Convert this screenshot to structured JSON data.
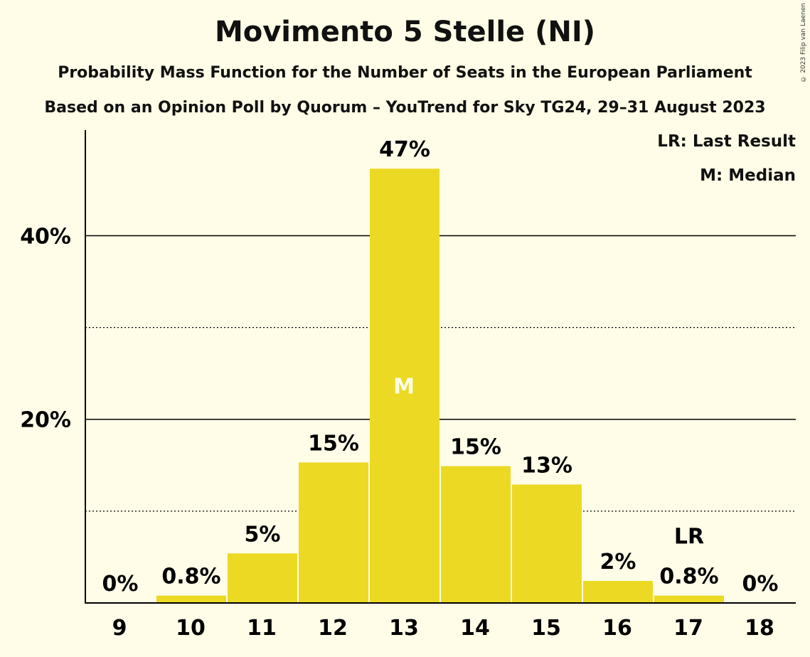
{
  "title": "Movimento 5 Stelle (NI)",
  "subtitle1": "Probability Mass Function for the Number of Seats in the European Parliament",
  "subtitle2": "Based on an Opinion Poll by Quorum – YouTrend for Sky TG24, 29–31 August 2023",
  "copyright": "© 2023 Filip van Laenen",
  "legend": {
    "last_result": "LR: Last Result",
    "median": "M: Median"
  },
  "colors": {
    "background": "#fffde7",
    "bar": "#ecd924",
    "median_text": "#fffde7"
  },
  "chart_data": {
    "type": "bar",
    "categories": [
      "9",
      "10",
      "11",
      "12",
      "13",
      "14",
      "15",
      "16",
      "17",
      "18"
    ],
    "values": [
      0,
      0.8,
      5.4,
      15.3,
      47.3,
      14.9,
      12.9,
      2.4,
      0.8,
      0
    ],
    "data_labels": [
      "0%",
      "0.8%",
      "5%",
      "15%",
      "47%",
      "15%",
      "13%",
      "2%",
      "0.8%",
      "0%"
    ],
    "ylim": [
      0,
      51.5
    ],
    "y_ticks": [
      {
        "value": 10,
        "label": "",
        "style": "dotted"
      },
      {
        "value": 20,
        "label": "20%",
        "style": "solid"
      },
      {
        "value": 30,
        "label": "",
        "style": "dotted"
      },
      {
        "value": 40,
        "label": "40%",
        "style": "solid"
      }
    ],
    "median_category": "13",
    "median_marker": "M",
    "last_result_category": "17",
    "last_result_marker": "LR",
    "xlabel": "",
    "ylabel": ""
  }
}
